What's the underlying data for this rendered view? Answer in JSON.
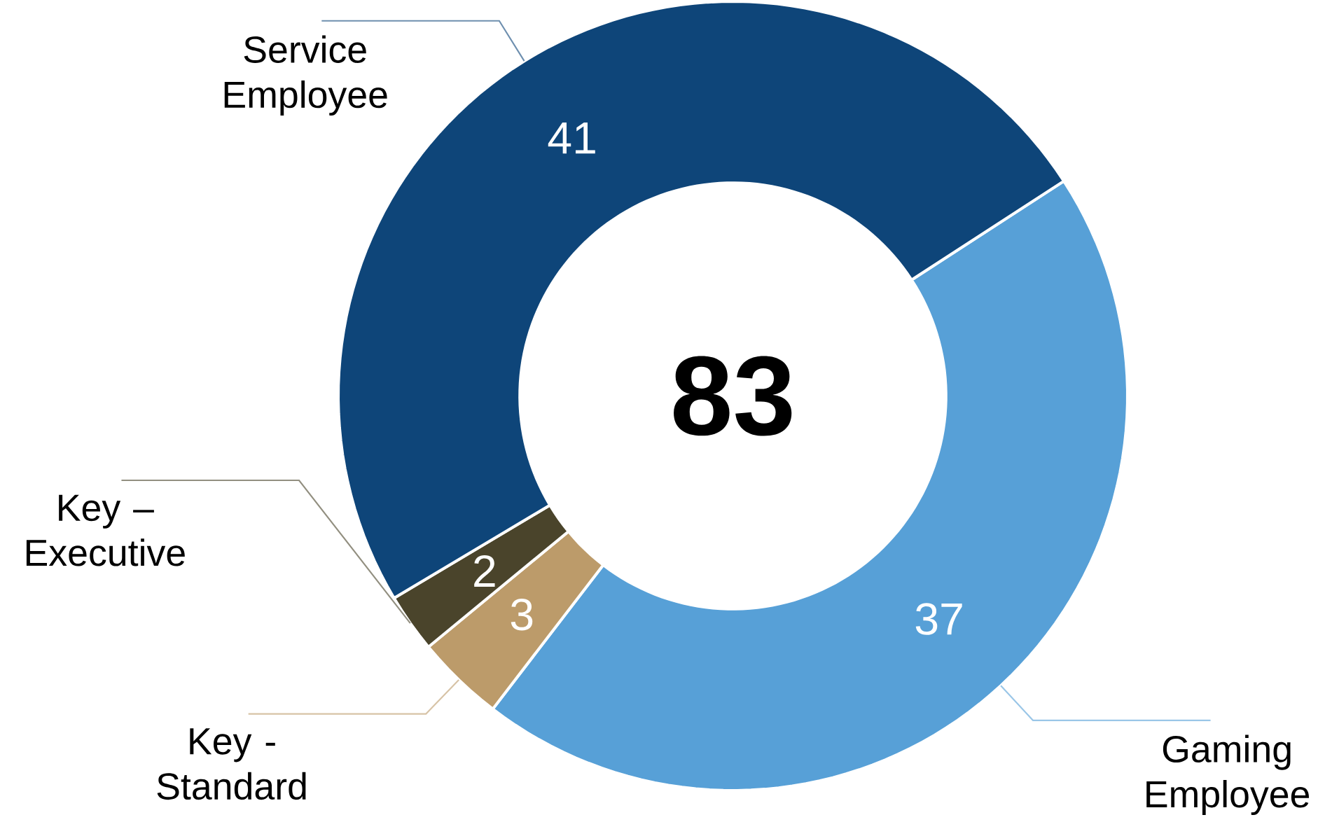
{
  "chart_data": {
    "type": "donut",
    "categories": [
      "Gaming Employee",
      "Key - Standard",
      "Key – Executive",
      "Service Employee"
    ],
    "values": [
      37,
      3,
      2,
      41
    ],
    "colors": [
      "#57a0d7",
      "#bc9b6a",
      "#4a442b",
      "#0e4579"
    ],
    "data_labels": true,
    "annotations": [
      "83"
    ]
  }
}
